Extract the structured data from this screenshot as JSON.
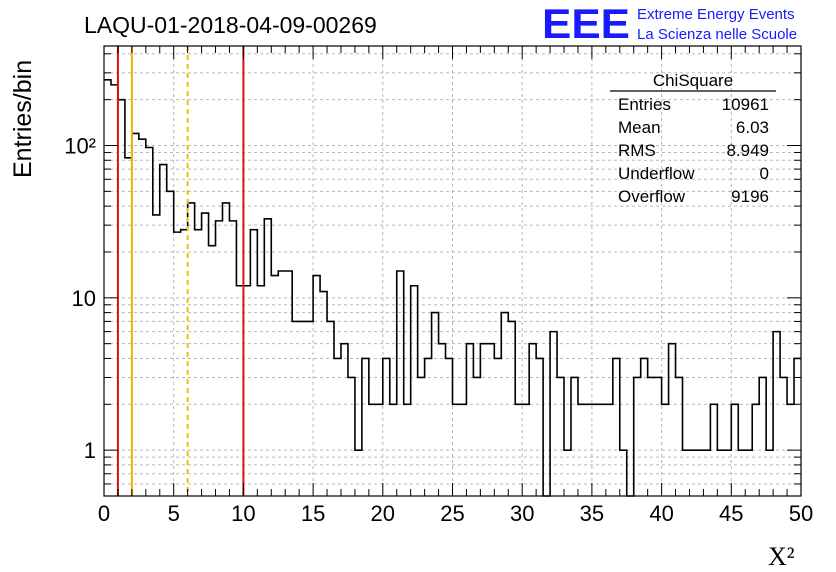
{
  "title": "LAQU-01-2018-04-09-00269",
  "logo": {
    "text": "EEE",
    "line1": "Extreme Energy Events",
    "line2": "La Scienza nelle Scuole",
    "color": "#1a1aff"
  },
  "stats": {
    "name": "ChiSquare",
    "rows": [
      {
        "label": "Entries",
        "value": "10961"
      },
      {
        "label": "Mean",
        "value": "6.03"
      },
      {
        "label": "RMS",
        "value": "8.949"
      },
      {
        "label": "Underflow",
        "value": "0"
      },
      {
        "label": "Overflow",
        "value": "9196"
      }
    ]
  },
  "chart_data": {
    "type": "bar",
    "subtype": "histogram",
    "xlabel": "X²",
    "ylabel": "Entries/bin",
    "xlim": [
      0,
      50
    ],
    "ylim": [
      0.5,
      450
    ],
    "yscale": "log",
    "grid": true,
    "bin_width": 0.5,
    "x_ticks": [
      "0",
      "5",
      "10",
      "15",
      "20",
      "25",
      "30",
      "35",
      "40",
      "45",
      "50"
    ],
    "y_ticks": [
      {
        "value": 1,
        "label": "1"
      },
      {
        "value": 10,
        "label": "10"
      },
      {
        "value": 100,
        "label": "10²"
      }
    ],
    "values": [
      270,
      250,
      200,
      83,
      120,
      110,
      97,
      35,
      75,
      50,
      27,
      28,
      42,
      28,
      36,
      22,
      32,
      42,
      32,
      12,
      12,
      28,
      12,
      33,
      14,
      15,
      15,
      7,
      7,
      7,
      14,
      11,
      7,
      4,
      5,
      3,
      1,
      4,
      2,
      2,
      4,
      2,
      15,
      2,
      12,
      3,
      4,
      8,
      5,
      4,
      2,
      2,
      5,
      3,
      5,
      5,
      4,
      8,
      7,
      2,
      2,
      5,
      4,
      0,
      6,
      3,
      1,
      3,
      2,
      2,
      2,
      2,
      2,
      4,
      1,
      0,
      3,
      4,
      3,
      3,
      2,
      5,
      3,
      1,
      1,
      1,
      1,
      2,
      1,
      1,
      2,
      1,
      1,
      2,
      3,
      1,
      6,
      3,
      2,
      4
    ],
    "vertical_lines": [
      {
        "x": 1,
        "color": "#e01010",
        "style": "solid"
      },
      {
        "x": 2,
        "color": "#f0b000",
        "style": "solid"
      },
      {
        "x": 6,
        "color": "#f0c000",
        "style": "dashed"
      },
      {
        "x": 10,
        "color": "#e01010",
        "style": "solid"
      }
    ]
  }
}
